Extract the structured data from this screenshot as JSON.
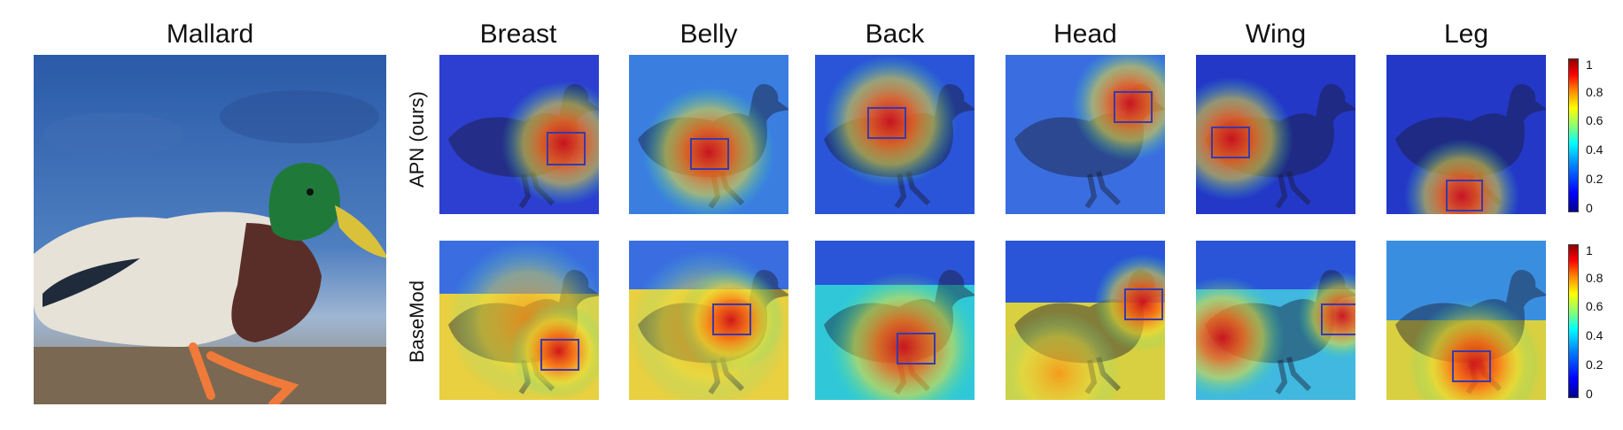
{
  "main": {
    "title": "Mallard"
  },
  "columns": [
    "Breast",
    "Belly",
    "Back",
    "Head",
    "Wing",
    "Leg"
  ],
  "rows": [
    "APN (ours)",
    "BaseMod"
  ],
  "colorbar": {
    "ticks": [
      "1",
      "0.8",
      "0.6",
      "0.4",
      "0.2",
      "0"
    ]
  },
  "colors": {
    "box": "#3a3aa8",
    "hot": "#e0201a",
    "cold": "#1a2fd0"
  }
}
